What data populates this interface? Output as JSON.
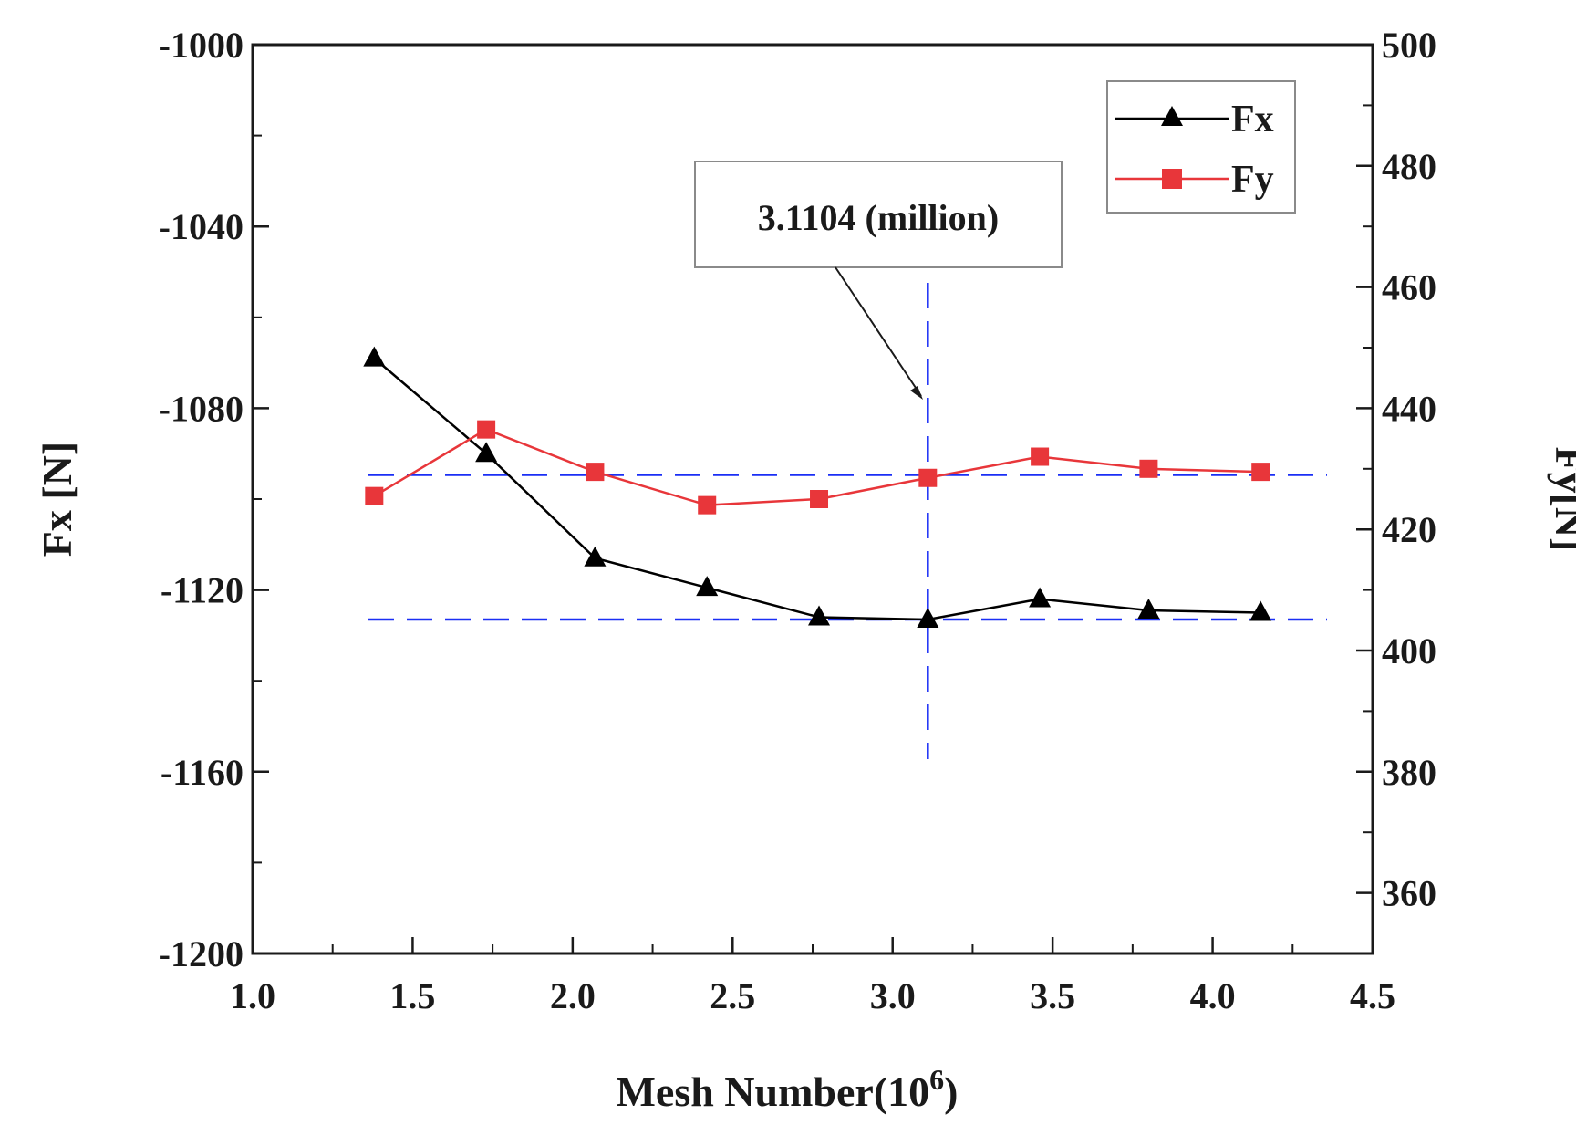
{
  "chart_data": {
    "type": "line",
    "title": "",
    "xlabel_main": "Mesh Number(10",
    "xlabel_sup": "6",
    "xlabel_close": ")",
    "ylabel_left": "Fx [N]",
    "ylabel_right": "Fy[N]",
    "xlim": [
      1.0,
      4.5
    ],
    "ylim_left": [
      -1200,
      -1000
    ],
    "ylim_right": [
      350,
      500
    ],
    "x_ticks": [
      "1.0",
      "1.5",
      "2.0",
      "2.5",
      "3.0",
      "3.5",
      "4.0",
      "4.5"
    ],
    "y_left_ticks": [
      "-1000",
      "-1040",
      "-1080",
      "-1120",
      "-1160",
      "-1200"
    ],
    "y_right_ticks": [
      "500",
      "480",
      "460",
      "440",
      "420",
      "400",
      "380",
      "360"
    ],
    "x": [
      1.38,
      1.73,
      2.07,
      2.42,
      2.77,
      3.11,
      3.46,
      3.8,
      4.15
    ],
    "series": [
      {
        "name": "Fx",
        "axis": "left",
        "color": "#000000",
        "marker": "triangle",
        "values": [
          -1069,
          -1090,
          -1113,
          -1119.5,
          -1126,
          -1126.5,
          -1122,
          -1124.5,
          -1125
        ]
      },
      {
        "name": "Fy",
        "axis": "right",
        "color": "#e8363a",
        "marker": "square",
        "values": [
          425.5,
          436.5,
          429.5,
          424,
          425,
          428.5,
          432,
          430,
          429.5
        ]
      }
    ],
    "reference_lines": {
      "color": "#1a2ff5",
      "fx_level": -1126.5,
      "fy_level": 429,
      "x_level": 3.11
    },
    "annotation": {
      "text": "3.1104 (million)"
    },
    "legend": {
      "placement": "top-right",
      "entries": [
        "Fx",
        "Fy"
      ]
    },
    "grid": false
  }
}
